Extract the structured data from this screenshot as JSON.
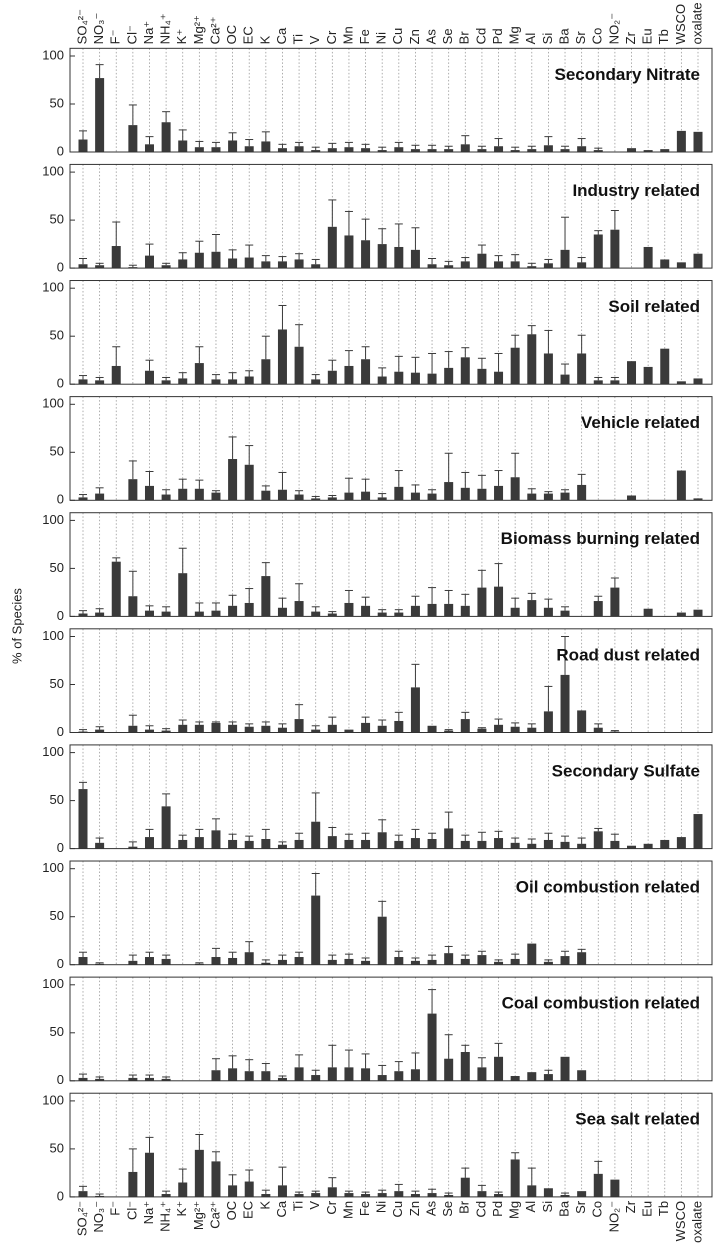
{
  "y_label": "% of Species",
  "chart_data": [
    {
      "type": "bar",
      "title": "Secondary Nitrate",
      "color": "#3a3a3a",
      "xgrid": true,
      "ylim": [
        0,
        108
      ],
      "yticks": [
        0,
        50,
        100
      ],
      "categories": [
        "SO₄²⁻",
        "NO₃⁻",
        "F⁻",
        "Cl⁻",
        "Na⁺",
        "NH₄⁺",
        "K⁺",
        "Mg²⁺",
        "Ca²⁺",
        "OC",
        "EC",
        "K",
        "Ca",
        "Ti",
        "V",
        "Cr",
        "Mn",
        "Fe",
        "Ni",
        "Cu",
        "Zn",
        "As",
        "Se",
        "Br",
        "Cd",
        "Pd",
        "Mg",
        "Al",
        "Si",
        "Ba",
        "Sr",
        "Co",
        "NO₂⁻",
        "Zr",
        "Eu",
        "Tb",
        "WSCO",
        "oxalate"
      ],
      "values": [
        13,
        77,
        null,
        28,
        8,
        31,
        12,
        5,
        5,
        12,
        6,
        11,
        4,
        6,
        2,
        4,
        5,
        4,
        2,
        5,
        3,
        3,
        3,
        8,
        3,
        6,
        2,
        3,
        7,
        3,
        6,
        2,
        null,
        4,
        2,
        3,
        22,
        21
      ],
      "errors": [
        9,
        14,
        null,
        21,
        8,
        11,
        11,
        6,
        5,
        8,
        7,
        10,
        4,
        4,
        3,
        5,
        5,
        4,
        3,
        5,
        4,
        4,
        3,
        9,
        3,
        8,
        3,
        3,
        9,
        3,
        8,
        2,
        null,
        null,
        null,
        null,
        null,
        null
      ]
    },
    {
      "type": "bar",
      "title": "Industry related",
      "color": "#3a3a3a",
      "xgrid": true,
      "ylim": [
        0,
        108
      ],
      "yticks": [
        0,
        50,
        100
      ],
      "values": [
        4,
        3,
        23,
        1,
        13,
        3,
        9,
        16,
        17,
        10,
        11,
        7,
        7,
        9,
        4,
        43,
        34,
        29,
        25,
        22,
        19,
        4,
        3,
        7,
        15,
        7,
        7,
        2,
        5,
        19,
        6,
        35,
        40,
        null,
        22,
        9,
        6,
        15
      ],
      "errors": [
        6,
        2,
        25,
        2,
        12,
        2,
        7,
        12,
        18,
        9,
        13,
        6,
        5,
        6,
        5,
        28,
        25,
        22,
        16,
        24,
        23,
        6,
        4,
        4,
        9,
        6,
        7,
        3,
        4,
        34,
        5,
        4,
        20,
        null,
        null,
        null,
        null,
        null
      ]
    },
    {
      "type": "bar",
      "title": "Soil related",
      "color": "#3a3a3a",
      "xgrid": true,
      "ylim": [
        0,
        108
      ],
      "yticks": [
        0,
        50,
        100
      ],
      "values": [
        5,
        4,
        19,
        null,
        14,
        4,
        6,
        22,
        5,
        5,
        8,
        26,
        57,
        39,
        5,
        14,
        19,
        26,
        8,
        13,
        12,
        11,
        17,
        28,
        16,
        13,
        38,
        52,
        32,
        10,
        32,
        4,
        4,
        24,
        18,
        37,
        3,
        6
      ],
      "errors": [
        4,
        3,
        20,
        null,
        11,
        3,
        6,
        17,
        5,
        7,
        6,
        24,
        25,
        23,
        5,
        11,
        16,
        13,
        9,
        16,
        16,
        21,
        17,
        10,
        11,
        19,
        13,
        9,
        24,
        11,
        19,
        3,
        3,
        null,
        null,
        null,
        null,
        null
      ]
    },
    {
      "type": "bar",
      "title": "Vehicle related",
      "color": "#3a3a3a",
      "xgrid": true,
      "ylim": [
        0,
        108
      ],
      "yticks": [
        0,
        50,
        100
      ],
      "values": [
        3,
        7,
        null,
        22,
        15,
        6,
        12,
        12,
        8,
        43,
        37,
        10,
        11,
        6,
        2,
        3,
        8,
        9,
        3,
        14,
        8,
        7,
        19,
        13,
        12,
        15,
        24,
        7,
        7,
        8,
        16,
        null,
        null,
        5,
        null,
        null,
        31,
        2
      ],
      "errors": [
        3,
        6,
        null,
        19,
        15,
        5,
        10,
        9,
        2,
        23,
        20,
        5,
        18,
        4,
        2,
        2,
        15,
        13,
        4,
        17,
        8,
        4,
        30,
        16,
        14,
        16,
        25,
        5,
        2,
        3,
        11,
        null,
        null,
        null,
        null,
        null,
        null,
        null
      ]
    },
    {
      "type": "bar",
      "title": "Biomass burning related",
      "color": "#3a3a3a",
      "xgrid": true,
      "ylim": [
        0,
        108
      ],
      "yticks": [
        0,
        50,
        100
      ],
      "values": [
        3,
        4,
        57,
        21,
        6,
        5,
        45,
        5,
        6,
        11,
        14,
        42,
        9,
        16,
        5,
        3,
        14,
        11,
        4,
        4,
        11,
        13,
        13,
        11,
        30,
        31,
        9,
        17,
        9,
        6,
        null,
        16,
        30,
        null,
        8,
        null,
        4,
        7
      ],
      "errors": [
        3,
        4,
        4,
        26,
        5,
        5,
        26,
        9,
        8,
        11,
        15,
        14,
        10,
        18,
        5,
        2,
        13,
        9,
        3,
        3,
        10,
        17,
        14,
        12,
        18,
        24,
        10,
        7,
        9,
        4,
        null,
        5,
        10,
        null,
        null,
        null,
        null,
        null
      ]
    },
    {
      "type": "bar",
      "title": "Road dust related",
      "color": "#3a3a3a",
      "xgrid": true,
      "ylim": [
        0,
        108
      ],
      "yticks": [
        0,
        50,
        100
      ],
      "values": [
        1,
        3,
        null,
        7,
        3,
        2,
        8,
        8,
        10,
        8,
        6,
        7,
        5,
        14,
        3,
        8,
        3,
        10,
        7,
        12,
        47,
        7,
        2,
        14,
        4,
        8,
        6,
        5,
        22,
        60,
        23,
        5,
        1,
        null,
        null,
        null,
        null,
        null
      ],
      "errors": [
        2,
        3,
        null,
        11,
        4,
        2,
        5,
        3,
        1,
        3,
        3,
        4,
        4,
        15,
        4,
        8,
        null,
        6,
        6,
        9,
        24,
        null,
        1,
        7,
        1,
        6,
        4,
        4,
        26,
        40,
        null,
        4,
        1,
        null,
        null,
        null,
        null,
        null
      ]
    },
    {
      "type": "bar",
      "title": "Secondary Sulfate",
      "color": "#3a3a3a",
      "xgrid": true,
      "ylim": [
        0,
        108
      ],
      "yticks": [
        0,
        50,
        100
      ],
      "values": [
        62,
        6,
        null,
        2,
        12,
        44,
        9,
        12,
        19,
        9,
        8,
        10,
        4,
        9,
        28,
        13,
        9,
        9,
        17,
        8,
        11,
        10,
        21,
        8,
        8,
        11,
        6,
        5,
        9,
        7,
        5,
        18,
        8,
        3,
        5,
        9,
        12,
        36
      ],
      "errors": [
        7,
        5,
        null,
        5,
        8,
        13,
        5,
        8,
        12,
        6,
        5,
        10,
        3,
        7,
        30,
        9,
        6,
        7,
        13,
        6,
        9,
        6,
        17,
        6,
        9,
        7,
        5,
        5,
        7,
        6,
        6,
        3,
        7,
        null,
        null,
        null,
        null,
        null
      ]
    },
    {
      "type": "bar",
      "title": "Oil combustion related",
      "color": "#3a3a3a",
      "xgrid": true,
      "ylim": [
        0,
        108
      ],
      "yticks": [
        0,
        50,
        100
      ],
      "values": [
        8,
        1,
        null,
        4,
        8,
        6,
        null,
        1,
        8,
        7,
        13,
        2,
        5,
        8,
        72,
        5,
        6,
        4,
        50,
        8,
        4,
        5,
        12,
        6,
        10,
        3,
        6,
        22,
        3,
        9,
        13,
        null,
        null,
        null,
        null,
        null,
        null,
        null
      ],
      "errors": [
        5,
        1,
        null,
        6,
        5,
        4,
        null,
        1,
        9,
        6,
        11,
        3,
        5,
        5,
        23,
        5,
        5,
        3,
        16,
        6,
        3,
        5,
        7,
        4,
        4,
        2,
        5,
        null,
        2,
        5,
        3,
        null,
        null,
        null,
        null,
        null,
        null,
        null
      ]
    },
    {
      "type": "bar",
      "title": "Coal combustion related",
      "color": "#3a3a3a",
      "xgrid": true,
      "ylim": [
        0,
        108
      ],
      "yticks": [
        0,
        50,
        100
      ],
      "values": [
        3,
        2,
        null,
        3,
        3,
        2,
        null,
        null,
        11,
        13,
        10,
        10,
        3,
        14,
        6,
        14,
        14,
        13,
        6,
        10,
        12,
        70,
        23,
        30,
        14,
        25,
        5,
        9,
        7,
        25,
        11,
        null,
        null,
        null,
        null,
        null,
        null,
        null
      ],
      "errors": [
        4,
        2,
        null,
        3,
        3,
        2,
        null,
        null,
        12,
        13,
        12,
        8,
        2,
        13,
        5,
        23,
        18,
        15,
        10,
        10,
        17,
        25,
        25,
        7,
        10,
        14,
        null,
        null,
        4,
        null,
        null,
        null,
        null,
        null,
        null,
        null,
        null,
        null
      ]
    },
    {
      "type": "bar",
      "title": "Sea salt related",
      "color": "#3a3a3a",
      "xgrid": true,
      "ylim": [
        0,
        108
      ],
      "yticks": [
        0,
        50,
        100
      ],
      "categories": [
        "SO₄²⁻",
        "NO₃⁻",
        "F⁻",
        "Cl⁻",
        "Na⁺",
        "NH₄⁺",
        "K⁺",
        "Mg²⁺",
        "Ca²⁺",
        "OC",
        "EC",
        "K",
        "Ca",
        "Ti",
        "V",
        "Cr",
        "Mn",
        "Fe",
        "Ni",
        "Cu",
        "Zn",
        "As",
        "Se",
        "Br",
        "Cd",
        "Pd",
        "Mg",
        "Al",
        "Si",
        "Ba",
        "Sr",
        "Co",
        "NO₂⁻",
        "Zr",
        "Eu",
        "Tb",
        "WSCO",
        "oxalate"
      ],
      "values": [
        6,
        1,
        null,
        26,
        46,
        3,
        15,
        49,
        37,
        12,
        16,
        3,
        12,
        3,
        4,
        10,
        4,
        3,
        4,
        6,
        3,
        4,
        2,
        20,
        6,
        3,
        39,
        12,
        9,
        2,
        6,
        24,
        18,
        null,
        null,
        null,
        null,
        null
      ],
      "errors": [
        5,
        2,
        null,
        24,
        16,
        3,
        14,
        16,
        10,
        11,
        12,
        4,
        19,
        2,
        2,
        10,
        2,
        2,
        3,
        7,
        3,
        4,
        2,
        10,
        6,
        2,
        7,
        18,
        null,
        2,
        null,
        13,
        null,
        null,
        null,
        null,
        null,
        null
      ]
    }
  ]
}
